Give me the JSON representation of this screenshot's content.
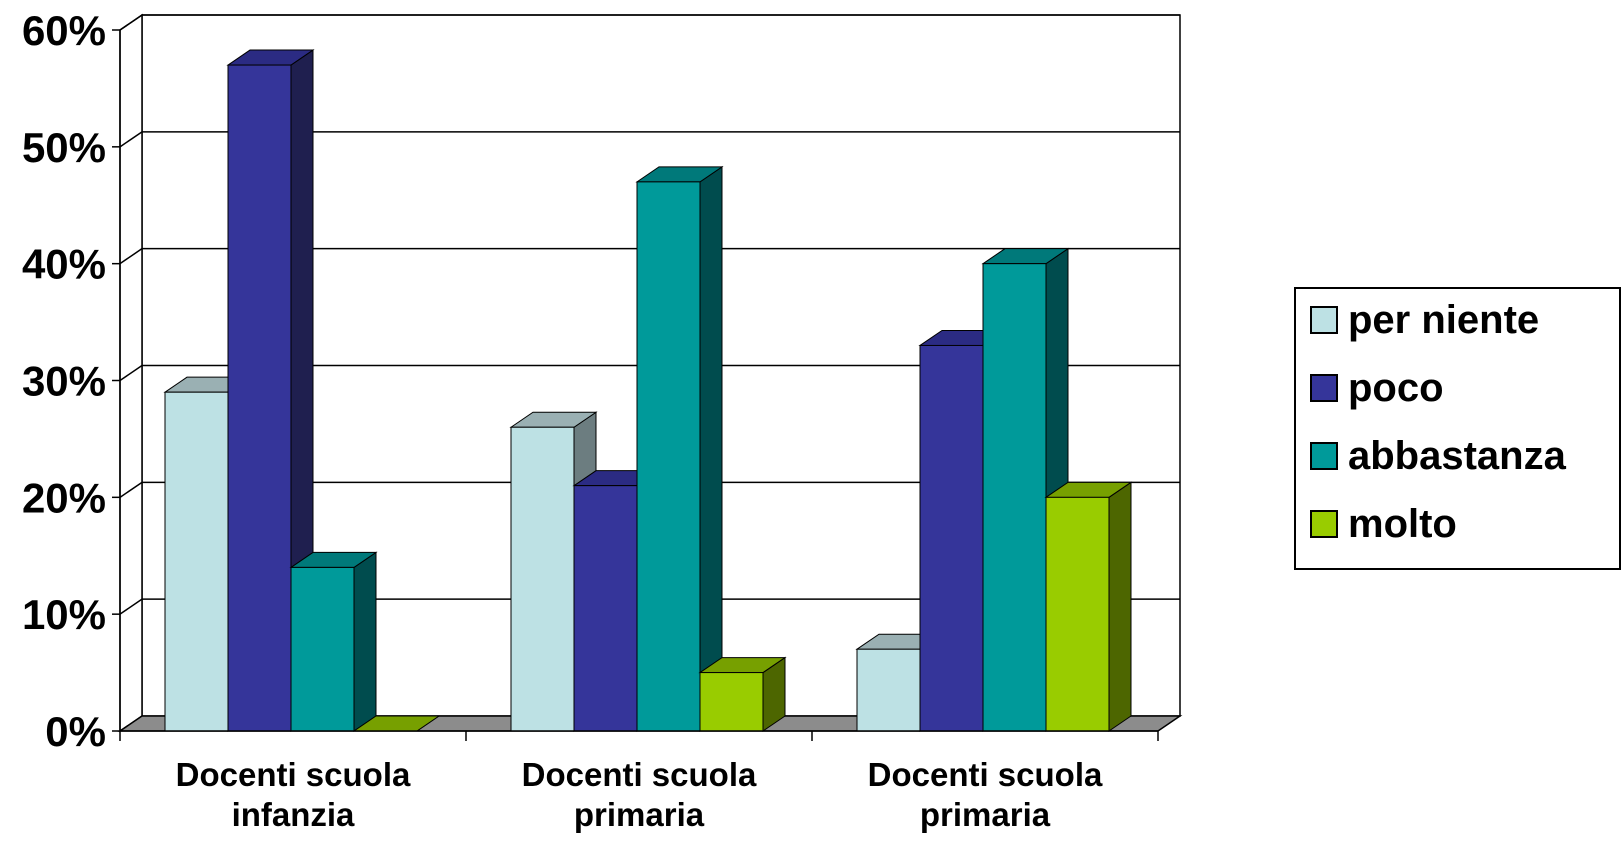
{
  "chart_data": {
    "type": "bar",
    "categories": [
      [
        "Docenti scuola",
        "infanzia"
      ],
      [
        "Docenti scuola",
        "primaria"
      ],
      [
        "Docenti scuola",
        "primaria"
      ]
    ],
    "series": [
      {
        "name": "per niente",
        "values": [
          29,
          26,
          7
        ],
        "color": "#bde1e4",
        "side_color": "#6c7d80",
        "top_color": "#9ab0b3"
      },
      {
        "name": "poco",
        "values": [
          57,
          21,
          33
        ],
        "color": "#35359a",
        "side_color": "#1f1f4f",
        "top_color": "#2b2b83"
      },
      {
        "name": "abbastanza",
        "values": [
          14,
          47,
          40
        ],
        "color": "#009a9a",
        "side_color": "#004c4e",
        "top_color": "#00797a"
      },
      {
        "name": "molto",
        "values": [
          0,
          5,
          20
        ],
        "color": "#99cc00",
        "side_color": "#4d6600",
        "top_color": "#77a000"
      }
    ],
    "y_ticks": [
      "0%",
      "10%",
      "20%",
      "30%",
      "40%",
      "50%",
      "60%"
    ],
    "ylim": [
      0,
      60
    ],
    "grid": true,
    "legend_position": "right",
    "title": "",
    "xlabel": "",
    "ylabel": ""
  }
}
